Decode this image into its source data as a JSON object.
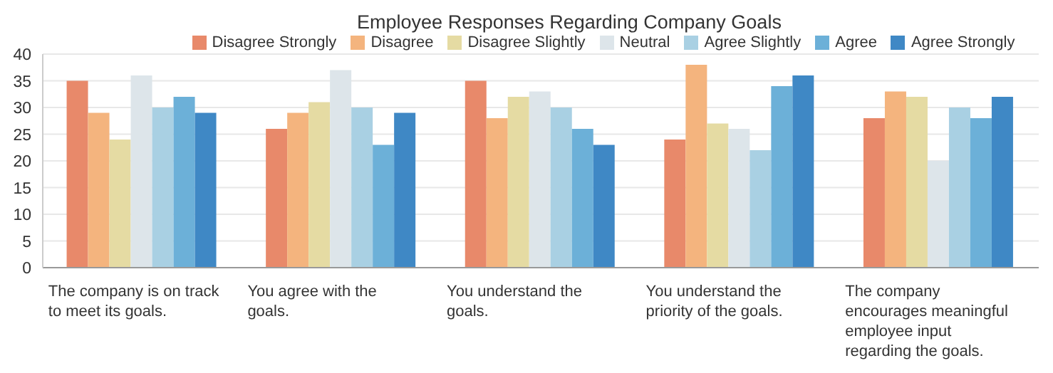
{
  "chart_data": {
    "type": "bar",
    "title": "Employee Responses Regarding Company Goals",
    "categories": [
      "The company is on track to meet its goals.",
      "You agree with the goals.",
      "You understand the goals.",
      "You understand the priority of the goals.",
      "The company encourages meaningful employee input regarding the goals."
    ],
    "series": [
      {
        "name": "Disagree Strongly",
        "color": "#e8896a",
        "values": [
          35,
          26,
          35,
          24,
          28
        ]
      },
      {
        "name": "Disagree",
        "color": "#f4b47e",
        "values": [
          29,
          29,
          28,
          38,
          33
        ]
      },
      {
        "name": "Disagree Slightly",
        "color": "#e5dba3",
        "values": [
          24,
          31,
          32,
          27,
          32
        ]
      },
      {
        "name": "Neutral",
        "color": "#dde5ea",
        "values": [
          36,
          37,
          33,
          26,
          20
        ]
      },
      {
        "name": "Agree Slightly",
        "color": "#a9d0e3",
        "values": [
          30,
          30,
          30,
          22,
          30
        ]
      },
      {
        "name": "Agree",
        "color": "#6cb0d8",
        "values": [
          32,
          23,
          26,
          34,
          28
        ]
      },
      {
        "name": "Agree Strongly",
        "color": "#3f88c5",
        "values": [
          29,
          29,
          23,
          36,
          32
        ]
      }
    ],
    "ylim": [
      0,
      40
    ],
    "yticks": [
      0,
      5,
      10,
      15,
      20,
      25,
      30,
      35,
      40
    ],
    "grid": "y",
    "legend": "top"
  }
}
